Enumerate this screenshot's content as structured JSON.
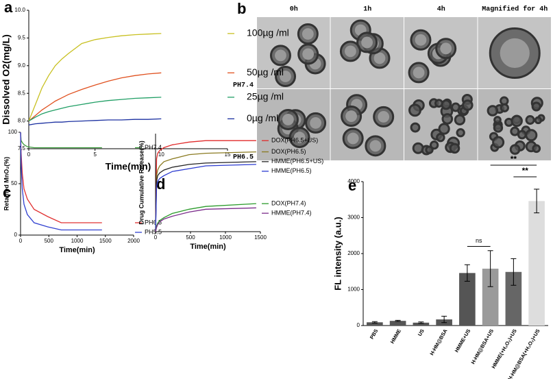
{
  "chart_data": [
    {
      "type": "line",
      "panel": "a",
      "xlabel": "Time(min)",
      "ylabel": "Dissolved O2(mg/L)",
      "x": [
        0,
        0.5,
        1,
        1.5,
        2,
        2.5,
        3,
        4,
        5,
        6,
        7,
        8,
        9,
        10
      ],
      "xlim": [
        0,
        15
      ],
      "xticks": [
        0,
        5,
        10,
        15
      ],
      "ylim": [
        7.5,
        10
      ],
      "yticks": [
        {
          "value": 7.5,
          "label": "7.5"
        },
        {
          "value": 8,
          "label": "8.0"
        },
        {
          "value": 8.5,
          "label": "8.5"
        },
        {
          "value": 9,
          "label": "9.0"
        },
        {
          "value": 9.5,
          "label": "9.5"
        },
        {
          "value": 10,
          "label": "10.0"
        }
      ],
      "series": [
        {
          "name": "100µg /ml",
          "color": "#c8c020",
          "values": [
            8.0,
            8.3,
            8.6,
            8.82,
            9.0,
            9.12,
            9.22,
            9.4,
            9.47,
            9.51,
            9.54,
            9.56,
            9.57,
            9.58
          ]
        },
        {
          "name": "50µg /ml",
          "color": "#e0501e",
          "values": [
            8.0,
            8.1,
            8.2,
            8.28,
            8.36,
            8.42,
            8.48,
            8.57,
            8.65,
            8.72,
            8.78,
            8.82,
            8.85,
            8.87
          ]
        },
        {
          "name": "25µg /ml",
          "color": "#1f9e64",
          "values": [
            8.0,
            8.07,
            8.13,
            8.17,
            8.2,
            8.23,
            8.26,
            8.3,
            8.34,
            8.37,
            8.39,
            8.41,
            8.42,
            8.43
          ]
        },
        {
          "name": "0µg /ml",
          "color": "#1a2fa0",
          "values": [
            7.93,
            7.95,
            7.96,
            7.97,
            7.98,
            7.98,
            7.99,
            8.0,
            8.01,
            8.02,
            8.02,
            8.03,
            8.03,
            8.04
          ]
        }
      ]
    },
    {
      "type": "line",
      "panel": "c",
      "xlabel": "Time(min)",
      "ylabel": "Retained MnO₂(%)",
      "x": [
        0,
        10,
        30,
        60,
        120,
        240,
        480,
        720,
        1440
      ],
      "xlim": [
        0,
        2000
      ],
      "xticks": [
        0,
        500,
        1000,
        1500,
        2000
      ],
      "ylim": [
        0,
        100
      ],
      "yticks": [
        0,
        50,
        100
      ],
      "series": [
        {
          "name": "PH7.4",
          "color": "#3a9a3a",
          "values": [
            100,
            92,
            90,
            88,
            86,
            85,
            85,
            85,
            85
          ]
        },
        {
          "name": "PH6.5",
          "color": "#e03030",
          "values": [
            100,
            80,
            60,
            45,
            35,
            25,
            18,
            12,
            12
          ]
        },
        {
          "name": "PH5.5",
          "color": "#3040d0",
          "values": [
            100,
            70,
            45,
            30,
            20,
            12,
            8,
            5,
            5
          ]
        }
      ]
    },
    {
      "type": "line",
      "panel": "d",
      "xlabel": "Time(min)",
      "ylabel": "Drug Cumulative Release(%)",
      "x": [
        0,
        15,
        30,
        60,
        120,
        240,
        480,
        720,
        1440
      ],
      "xlim": [
        0,
        1500
      ],
      "xticks": [
        0,
        500,
        1000,
        1500
      ],
      "ylim": [
        0,
        70
      ],
      "series": [
        {
          "name": "DOX(PH6.5+US)",
          "color": "#e02a2a",
          "values": [
            0,
            52,
            56,
            58,
            60,
            62,
            64,
            65,
            65
          ]
        },
        {
          "name": "DOX(PH6.5)",
          "color": "#8a7a20",
          "values": [
            0,
            40,
            44,
            47,
            50,
            52,
            55,
            56,
            57
          ]
        },
        {
          "name": "HMME(PH6.5+US)",
          "color": "#222222",
          "values": [
            0,
            36,
            40,
            42,
            44,
            46,
            48,
            49,
            50
          ]
        },
        {
          "name": "HMME(PH6.5)",
          "color": "#2a3ad0",
          "values": [
            0,
            32,
            36,
            38,
            40,
            43,
            45,
            47,
            48
          ]
        },
        {
          "name": "DOX(PH7.4)",
          "color": "#2a9a2a",
          "values": [
            0,
            4,
            6,
            8,
            10,
            13,
            16,
            18,
            20
          ]
        },
        {
          "name": "HMME(PH7.4)",
          "color": "#7a2a8a",
          "values": [
            0,
            3,
            5,
            7,
            9,
            11,
            14,
            16,
            17
          ]
        }
      ]
    },
    {
      "type": "bar",
      "panel": "e",
      "ylabel": "FL intensity (a.u.)",
      "categories": [
        "PBS",
        "HMME",
        "US",
        "H-HM@BSA",
        "HMME+US",
        "H-HM@BSA+US",
        "HMME(+H₂O₂)+US",
        "H-HM@BSA(+H₂O₂)+US"
      ],
      "values": [
        90,
        130,
        80,
        170,
        1460,
        1580,
        1490,
        3460
      ],
      "errors": [
        20,
        15,
        20,
        90,
        230,
        500,
        370,
        330
      ],
      "colors": [
        "#555555",
        "#555555",
        "#555555",
        "#555555",
        "#555555",
        "#9a9a9a",
        "#666666",
        "#dddddd"
      ],
      "ylim": [
        0,
        4000
      ],
      "yticks": [
        0,
        1000,
        2000,
        3000,
        4000
      ],
      "annotations": [
        "ns",
        "**",
        "**"
      ]
    }
  ],
  "image_grid": {
    "panel": "b",
    "columns": [
      "0h",
      "1h",
      "4h",
      "Magnified for 4h"
    ],
    "rows": [
      "PH7.4",
      "PH6.5"
    ]
  }
}
